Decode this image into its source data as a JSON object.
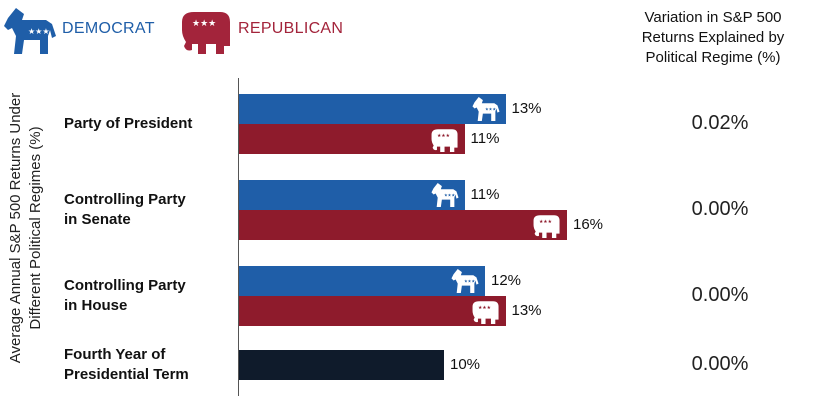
{
  "legend": {
    "democrat": "DEMOCRAT",
    "republican": "REPUBLICAN"
  },
  "colors": {
    "democrat": "#1f5ea8",
    "republican": "#8e1b2c",
    "other": "#0f1b2b"
  },
  "icons": {
    "democrat": "donkey-icon",
    "republican": "elephant-icon"
  },
  "chart_data": {
    "type": "bar",
    "orientation": "horizontal",
    "ylabel": "Average Annual S&P 500 Returns Under Different Political Regimes (%)",
    "right_column_title": "Variation in S&P 500 Returns Explained by Political Regime (%)",
    "xlim": [
      0,
      20
    ],
    "categories": [
      {
        "label_lines": [
          "Party of President"
        ],
        "bars": [
          {
            "party": "democrat",
            "value": 13,
            "label": "13%"
          },
          {
            "party": "republican",
            "value": 11,
            "label": "11%"
          }
        ],
        "variation_explained": "0.02%"
      },
      {
        "label_lines": [
          "Controlling Party",
          "in Senate"
        ],
        "bars": [
          {
            "party": "democrat",
            "value": 11,
            "label": "11%"
          },
          {
            "party": "republican",
            "value": 16,
            "label": "16%"
          }
        ],
        "variation_explained": "0.00%"
      },
      {
        "label_lines": [
          "Controlling Party",
          "in House"
        ],
        "bars": [
          {
            "party": "democrat",
            "value": 12,
            "label": "12%"
          },
          {
            "party": "republican",
            "value": 13,
            "label": "13%"
          }
        ],
        "variation_explained": "0.00%"
      },
      {
        "label_lines": [
          "Fourth Year of",
          "Presidential Term"
        ],
        "bars": [
          {
            "party": "other",
            "value": 10,
            "label": "10%"
          }
        ],
        "variation_explained": "0.00%"
      }
    ]
  }
}
